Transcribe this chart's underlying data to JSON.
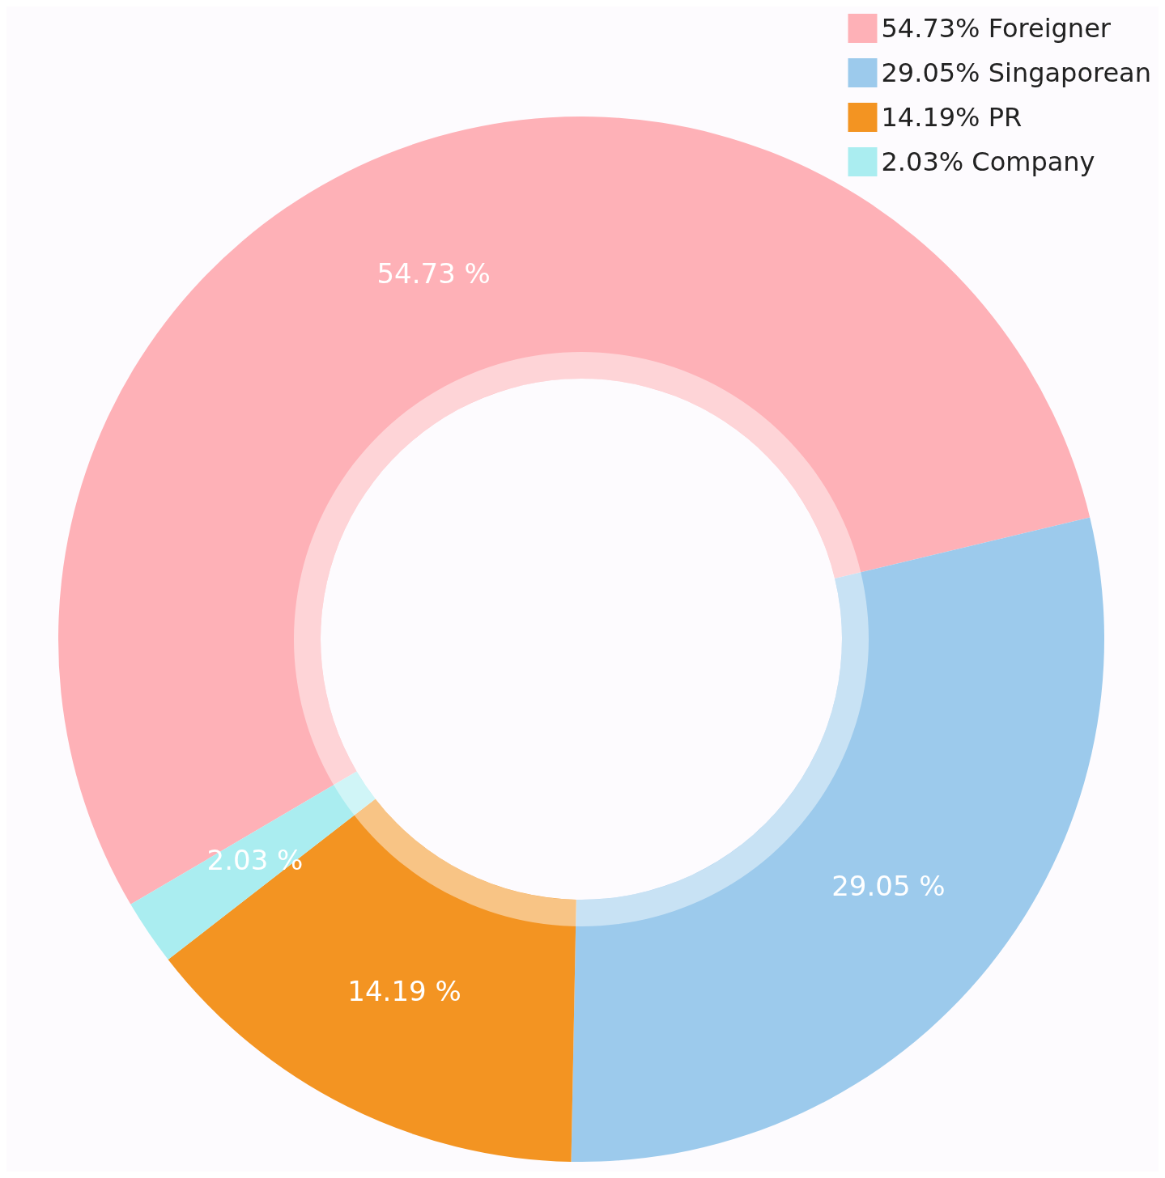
{
  "chart_data": {
    "type": "donut",
    "categories": [
      "54.73% Foreigner",
      "29.05% Singaporean",
      "14.19% PR",
      "2.03% Company"
    ],
    "values": [
      54.73,
      29.05,
      14.19,
      2.03
    ],
    "colors": [
      "#feb1b7",
      "#9ccaec",
      "#f39422",
      "#aaedf0"
    ],
    "value_labels": [
      "54.73 %",
      "29.05 %",
      "14.19 %",
      "2.03 %"
    ],
    "legend": "top right"
  }
}
